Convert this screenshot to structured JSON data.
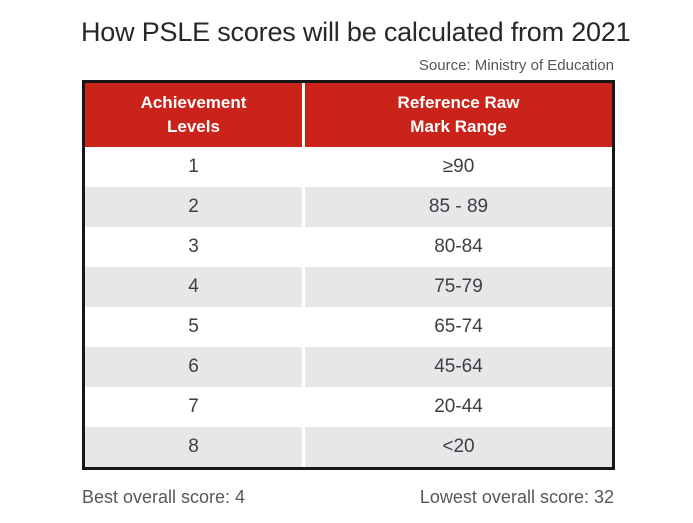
{
  "title": "How PSLE scores will be calculated from 2021",
  "source": "Source: Ministry of Education",
  "colors": {
    "accent_red": "#c9231a",
    "stripe_gray": "#e6e7e9",
    "table_border": "#171717",
    "title_text": "#28282a",
    "body_text": "#3e3f43",
    "muted_text": "#56575b"
  },
  "table": {
    "headers": [
      "Achievement\nLevels",
      "Reference Raw\nMark Range"
    ],
    "rows": [
      {
        "level": "1",
        "range": "≥90"
      },
      {
        "level": "2",
        "range": "85 - 89"
      },
      {
        "level": "3",
        "range": "80-84"
      },
      {
        "level": "4",
        "range": "75-79"
      },
      {
        "level": "5",
        "range": "65-74"
      },
      {
        "level": "6",
        "range": "45-64"
      },
      {
        "level": "7",
        "range": "20-44"
      },
      {
        "level": "8",
        "range": "<20"
      }
    ]
  },
  "footer": {
    "best": "Best overall score: 4",
    "lowest": "Lowest overall score: 32"
  },
  "chart_data": {
    "type": "table",
    "title": "How PSLE scores will be calculated from 2021",
    "source": "Source: Ministry of Education",
    "columns": [
      "Achievement Levels",
      "Reference Raw Mark Range"
    ],
    "rows": [
      [
        "1",
        "≥90"
      ],
      [
        "2",
        "85 - 89"
      ],
      [
        "3",
        "80-84"
      ],
      [
        "4",
        "75-79"
      ],
      [
        "5",
        "65-74"
      ],
      [
        "6",
        "45-64"
      ],
      [
        "7",
        "20-44"
      ],
      [
        "8",
        "<20"
      ]
    ],
    "annotations": [
      "Best overall score: 4",
      "Lowest overall score: 32"
    ],
    "layout": {
      "header_bg": "#c9231a",
      "row_stripe": "#e6e7e9",
      "striped_rows": [
        2,
        4,
        6,
        8
      ]
    }
  }
}
